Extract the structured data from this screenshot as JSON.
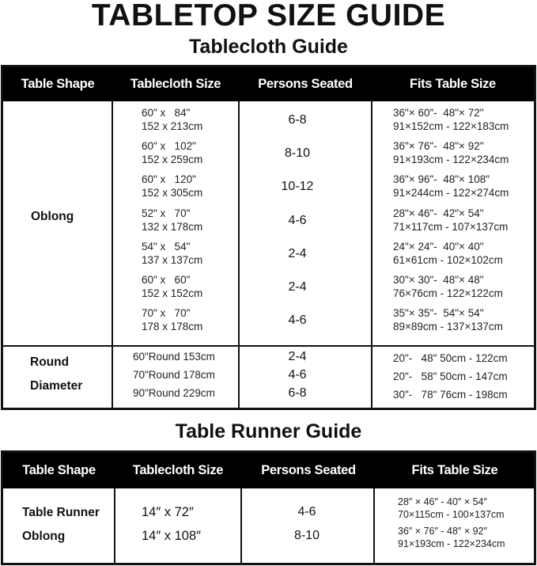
{
  "title": "TABLETOP SIZE GUIDE",
  "tablecloth": {
    "heading": "Tablecloth Guide",
    "columns": [
      "Table Shape",
      "Tablecloth Size",
      "Persons Seated",
      "Fits Table Size"
    ],
    "oblong": {
      "shape": "Oblong",
      "rows": [
        {
          "size_in": "60\" x   84\"",
          "size_cm": "152 x 213cm",
          "seated": "6-8",
          "fits_in": "36\"× 60\"-  48\"× 72\"",
          "fits_cm": "91×152cm - 122×183cm"
        },
        {
          "size_in": "60\" x   102\"",
          "size_cm": "152 x 259cm",
          "seated": "8-10",
          "fits_in": "36\"× 76\"-  48\"× 92\"",
          "fits_cm": "91×193cm - 122×234cm"
        },
        {
          "size_in": "60\" x   120\"",
          "size_cm": "152 x 305cm",
          "seated": "10-12",
          "fits_in": "36\"× 96\"-  48\"× 108\"",
          "fits_cm": "91×244cm - 122×274cm"
        },
        {
          "size_in": "52\" x   70\"",
          "size_cm": "132 x 178cm",
          "seated": "4-6",
          "fits_in": "28\"× 46\"-  42\"× 54\"",
          "fits_cm": "71×117cm - 107×137cm"
        },
        {
          "size_in": "54\" x   54\"",
          "size_cm": "137 x 137cm",
          "seated": "2-4",
          "fits_in": "24\"× 24\"-  40\"× 40\"",
          "fits_cm": "61×61cm - 102×102cm"
        },
        {
          "size_in": "60\" x   60\"",
          "size_cm": "152 x 152cm",
          "seated": "2-4",
          "fits_in": "30\"× 30\"-  48\"× 48\"",
          "fits_cm": "76×76cm - 122×122cm"
        },
        {
          "size_in": "70\" x   70\"",
          "size_cm": "178 x 178cm",
          "seated": "4-6",
          "fits_in": "35\"× 35\"-  54\"× 54\"",
          "fits_cm": "89×89cm - 137×137cm"
        }
      ]
    },
    "round": {
      "shape_line1": "Round",
      "shape_line2": "Diameter",
      "rows": [
        {
          "size": "60\"Round 153cm",
          "seated": "2-4",
          "fits": "20\"-   48\" 50cm - 122cm"
        },
        {
          "size": "70\"Round 178cm",
          "seated": "4-6",
          "fits": "20\"-   58\" 50cm - 147cm"
        },
        {
          "size": "90\"Round 229cm",
          "seated": "6-8",
          "fits": "30\"-   78\" 76cm - 198cm"
        }
      ]
    }
  },
  "runner": {
    "heading": "Table Runner Guide",
    "columns": [
      "Table Shape",
      "Tablecloth Size",
      "Persons Seated",
      "Fits Table Size"
    ],
    "shape_line1": "Table Runner",
    "shape_line2": "Oblong",
    "rows": [
      {
        "size": "14″   x 72″",
        "seated": "4-6",
        "fits_in": "28″ × 46″ - 40″ × 54″",
        "fits_cm": "70×115cm - 100×137cm"
      },
      {
        "size": "14″   x 108″",
        "seated": "8-10",
        "fits_in": "36″ × 76″ - 48″ × 92″",
        "fits_cm": "91×193cm - 122×234cm"
      }
    ]
  }
}
